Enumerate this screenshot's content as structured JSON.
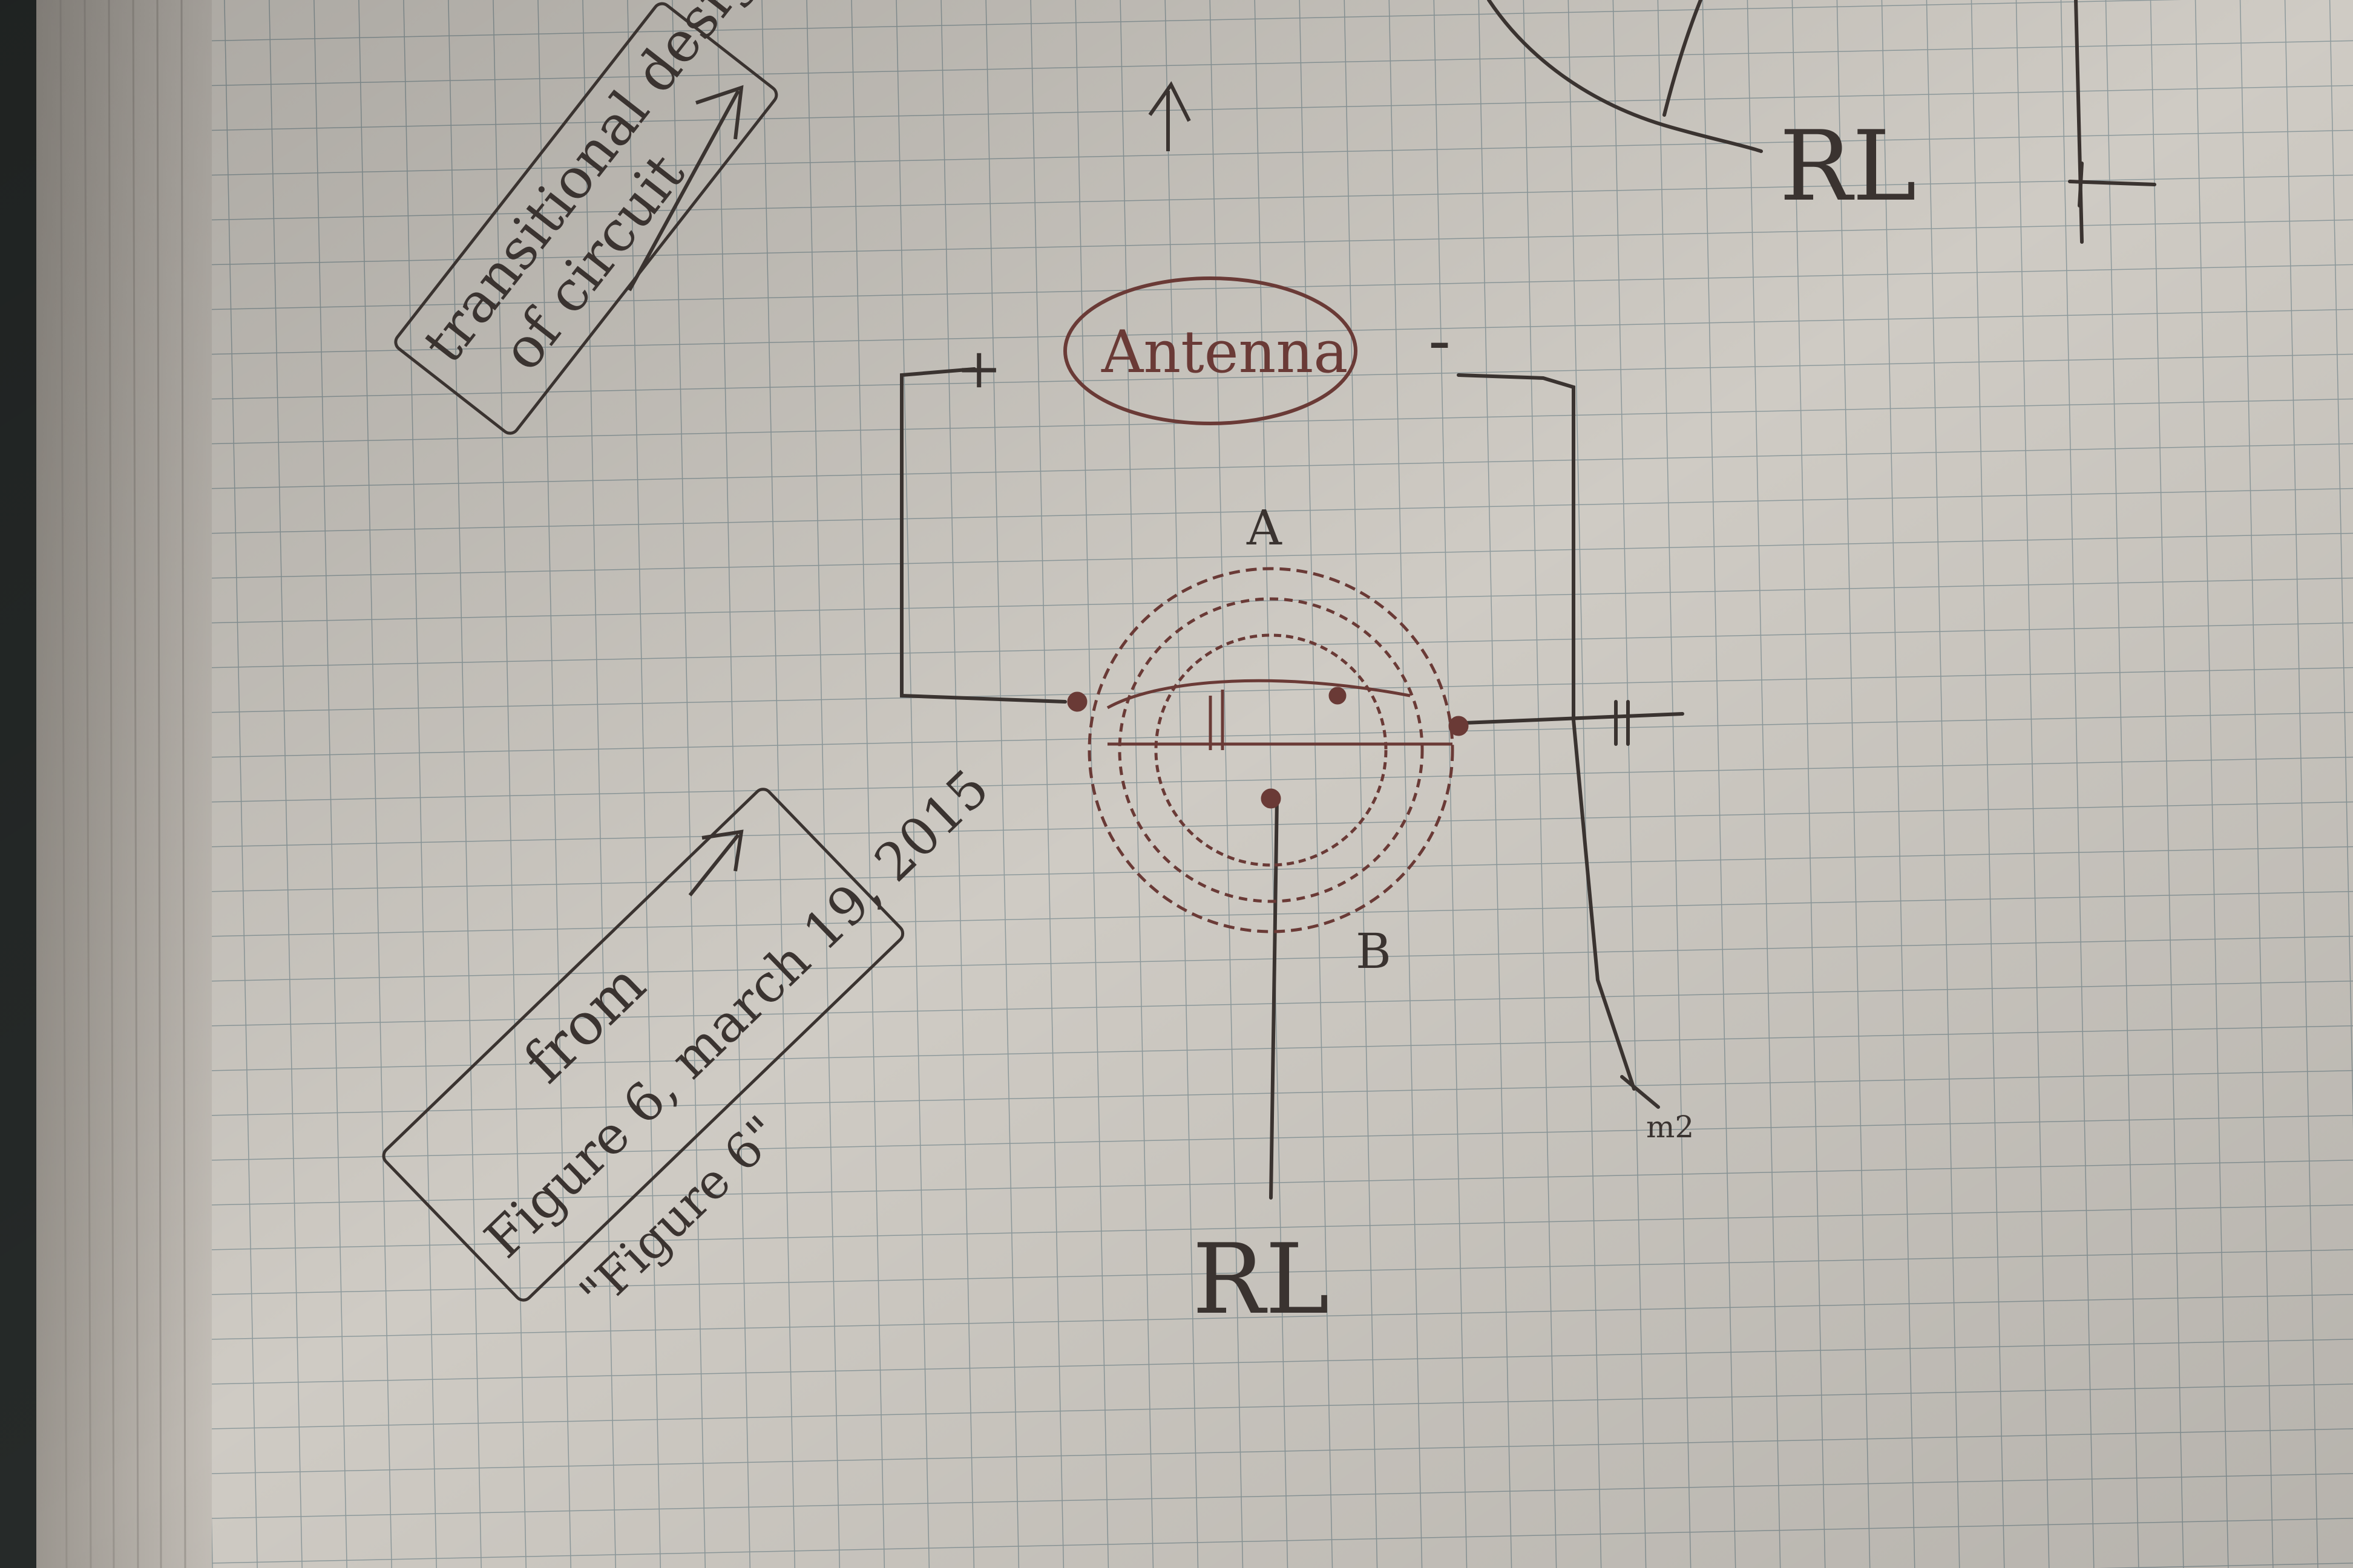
{
  "notes": {
    "transitional_box": {
      "line1": "transitional design",
      "line2": "of circuit"
    },
    "antenna_label": "Antenna",
    "terminal_plus": "+",
    "terminal_minus": "-",
    "coil_top_label": "A",
    "coil_bottom_label": "B",
    "load_label_bottom": "RL",
    "load_label_top": "RL",
    "ground_label": "m2",
    "figure_box": {
      "line1": "from",
      "line2": "Figure 6, march 19, 2015"
    },
    "figure_quote": "\"Figure 6\""
  },
  "colors": {
    "paper": "#cfcbc4",
    "grid": "#8e9a9c",
    "ink": "#3a3330",
    "ink_red": "#6a3a36",
    "binding": "#262a29",
    "page_edges": "#b9b4ad"
  }
}
